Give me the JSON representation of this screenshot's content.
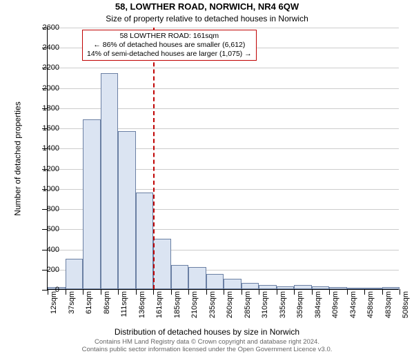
{
  "title": "58, LOWTHER ROAD, NORWICH, NR4 6QW",
  "subtitle": "Size of property relative to detached houses in Norwich",
  "ylabel": "Number of detached properties",
  "xlabel": "Distribution of detached houses by size in Norwich",
  "footer_line1": "Contains HM Land Registry data © Crown copyright and database right 2024.",
  "footer_line2": "Contains public sector information licensed under the Open Government Licence v3.0.",
  "info_box": {
    "line1": "58 LOWTHER ROAD: 161sqm",
    "line2": "← 86% of detached houses are smaller (6,612)",
    "line3": "14% of semi-detached houses are larger (1,075) →"
  },
  "chart": {
    "type": "histogram",
    "ymax": 2600,
    "ytick_step": 200,
    "bar_fill": "#dbe4f2",
    "bar_stroke": "#6a7fa3",
    "grid_color": "#cccccc",
    "ref_color": "#c00000",
    "ref_x_index": 6,
    "x_labels": [
      "12sqm",
      "37sqm",
      "61sqm",
      "86sqm",
      "111sqm",
      "136sqm",
      "161sqm",
      "185sqm",
      "210sqm",
      "235sqm",
      "260sqm",
      "285sqm",
      "310sqm",
      "335sqm",
      "359sqm",
      "384sqm",
      "409sqm",
      "434sqm",
      "458sqm",
      "483sqm",
      "508sqm"
    ],
    "values": [
      20,
      300,
      1680,
      2140,
      1570,
      960,
      500,
      240,
      220,
      150,
      100,
      60,
      40,
      30,
      40,
      30,
      20,
      10,
      15,
      20
    ],
    "label_fontsize": 11,
    "title_fontsize": 13
  }
}
